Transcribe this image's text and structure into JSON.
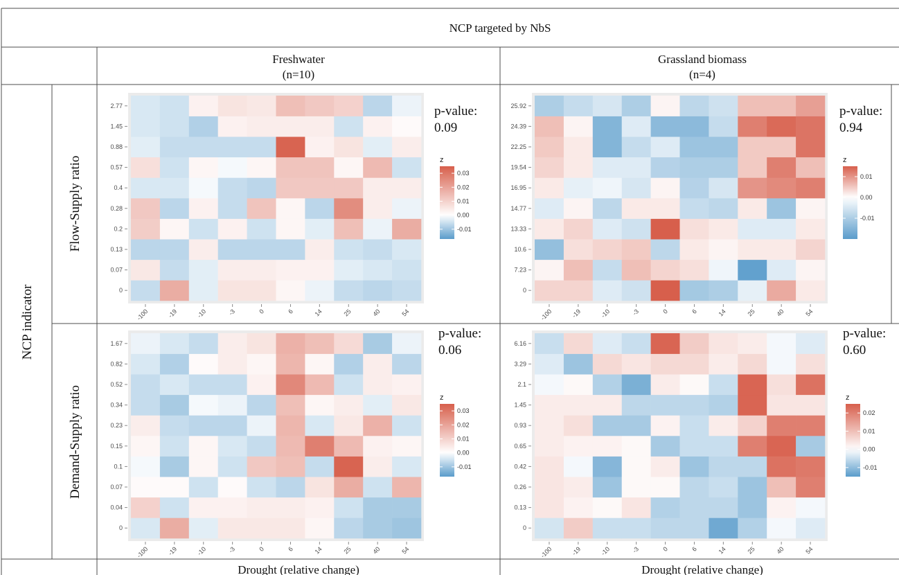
{
  "table": {
    "header_title": "NCP targeted by NbS",
    "row_group_label": "NCP indicator",
    "row_labels": [
      "Flow-Supply ratio",
      "Demand-Supply ratio"
    ],
    "column_titles": [
      {
        "name": "Freshwater",
        "n": "(n=10)"
      },
      {
        "name": "Grassland biomass",
        "n": "(n=4)"
      }
    ],
    "footer_labels": [
      "Drought (relative change)",
      "Drought (relative change)"
    ]
  },
  "colors": {
    "low": "#5a9ccb",
    "mid": "#ffffff",
    "high": "#d75f4c",
    "panel_bg": "#ebebeb"
  },
  "chart_data": [
    {
      "type": "heatmap",
      "ncp": "Freshwater",
      "indicator": "Flow-Supply ratio",
      "p_value_label": "p-value:",
      "p_value": "0.09",
      "legend_title": "z",
      "legend_ticks": [
        "0.03",
        "0.02",
        "0.01",
        "0.00",
        "-0.01"
      ],
      "zlim": [
        -0.017,
        0.035
      ],
      "x_categories": [
        "-100",
        "-19",
        "-10",
        "-3",
        "0",
        "6",
        "14",
        "25",
        "40",
        "54"
      ],
      "y_categories": [
        "0",
        "0.07",
        "0.13",
        "0.2",
        "0.28",
        "0.4",
        "0.57",
        "0.88",
        "1.45",
        "2.77"
      ],
      "z": [
        [
          -0.006,
          0.018,
          -0.003,
          0.006,
          0.006,
          0.002,
          -0.002,
          -0.006,
          -0.007,
          -0.006
        ],
        [
          0.005,
          -0.006,
          -0.003,
          0.004,
          0.004,
          0.003,
          0.003,
          -0.003,
          -0.004,
          -0.005
        ],
        [
          -0.007,
          -0.007,
          0.004,
          -0.007,
          -0.007,
          -0.007,
          0.004,
          -0.005,
          -0.006,
          -0.004
        ],
        [
          0.011,
          0.002,
          -0.005,
          0.003,
          -0.005,
          0.002,
          -0.003,
          0.014,
          -0.002,
          0.018
        ],
        [
          0.012,
          -0.007,
          0.003,
          -0.006,
          0.013,
          0.002,
          -0.007,
          0.025,
          0.004,
          -0.002
        ],
        [
          -0.004,
          -0.004,
          -0.001,
          -0.006,
          -0.007,
          0.012,
          0.012,
          0.012,
          0.004,
          0.004
        ],
        [
          0.007,
          -0.005,
          0.002,
          -0.001,
          0.002,
          0.013,
          0.013,
          0.002,
          0.015,
          -0.005
        ],
        [
          -0.003,
          -0.006,
          -0.006,
          -0.006,
          -0.006,
          0.034,
          0.003,
          0.006,
          -0.003,
          0.004
        ],
        [
          -0.004,
          -0.005,
          -0.008,
          0.003,
          0.004,
          0.004,
          0.004,
          -0.005,
          0.003,
          0.001
        ],
        [
          -0.004,
          -0.005,
          0.003,
          0.006,
          0.005,
          0.014,
          0.012,
          0.01,
          -0.007,
          -0.002
        ]
      ]
    },
    {
      "type": "heatmap",
      "ncp": "Grassland biomass",
      "indicator": "Flow-Supply ratio",
      "p_value_label": "p-value:",
      "p_value": "0.94",
      "legend_title": "z",
      "legend_ticks": [
        "0.01",
        "0.00",
        "-0.01"
      ],
      "zlim": [
        -0.02,
        0.015
      ],
      "x_categories": [
        "-100",
        "-19",
        "-10",
        "-3",
        "0",
        "6",
        "14",
        "25",
        "40",
        "54"
      ],
      "y_categories": [
        "0",
        "7.23",
        "10.6",
        "13.33",
        "14.77",
        "16.95",
        "19.54",
        "22.25",
        "24.39",
        "25.92"
      ],
      "z": [
        [
          0.004,
          0.004,
          -0.004,
          -0.006,
          0.015,
          -0.011,
          -0.01,
          -0.003,
          0.008,
          0.002
        ],
        [
          0.001,
          0.006,
          -0.007,
          0.006,
          0.004,
          0.003,
          -0.002,
          -0.019,
          -0.004,
          0.001
        ],
        [
          -0.013,
          0.003,
          0.004,
          0.005,
          -0.008,
          0.002,
          0.001,
          0.002,
          0.002,
          0.004
        ],
        [
          0.002,
          0.004,
          -0.004,
          -0.006,
          0.015,
          0.003,
          0.002,
          -0.004,
          -0.004,
          0.002
        ],
        [
          -0.004,
          0.001,
          -0.008,
          0.002,
          0.002,
          -0.007,
          -0.008,
          0.002,
          -0.012,
          0.001
        ],
        [
          0.002,
          -0.003,
          -0.002,
          -0.005,
          0.001,
          -0.009,
          -0.005,
          0.01,
          0.011,
          0.012
        ],
        [
          0.004,
          0.002,
          -0.004,
          -0.004,
          -0.009,
          -0.01,
          -0.01,
          0.005,
          0.012,
          0.006
        ],
        [
          0.005,
          0.002,
          -0.015,
          -0.007,
          -0.004,
          -0.012,
          -0.012,
          0.005,
          0.005,
          0.013
        ],
        [
          0.006,
          0.001,
          -0.015,
          -0.004,
          -0.014,
          -0.014,
          -0.007,
          0.012,
          0.014,
          0.013
        ],
        [
          -0.01,
          -0.007,
          -0.005,
          -0.01,
          0.001,
          -0.008,
          -0.006,
          0.006,
          0.006,
          0.009
        ]
      ]
    },
    {
      "type": "heatmap",
      "ncp": "Freshwater",
      "indicator": "Demand-Supply ratio",
      "p_value_label": "p-value:",
      "p_value": "0.06",
      "legend_title": "z",
      "legend_ticks": [
        "0.03",
        "0.02",
        "0.01",
        "0.00",
        "-0.01"
      ],
      "zlim": [
        -0.017,
        0.035
      ],
      "x_categories": [
        "-100",
        "-19",
        "-10",
        "-3",
        "0",
        "6",
        "14",
        "25",
        "40",
        "54"
      ],
      "y_categories": [
        "0",
        "0.04",
        "0.07",
        "0.1",
        "0.15",
        "0.23",
        "0.34",
        "0.52",
        "0.82",
        "1.67"
      ],
      "z": [
        [
          -0.004,
          0.018,
          -0.003,
          0.005,
          0.005,
          0.005,
          0.002,
          -0.007,
          -0.009,
          -0.01
        ],
        [
          0.01,
          -0.005,
          0.003,
          0.003,
          0.004,
          0.004,
          0.003,
          -0.005,
          -0.009,
          -0.009
        ],
        [
          0.001,
          0.001,
          -0.005,
          0.001,
          -0.005,
          -0.007,
          0.006,
          0.018,
          -0.005,
          0.016
        ],
        [
          -0.001,
          -0.009,
          0.002,
          -0.005,
          0.012,
          0.014,
          -0.006,
          0.034,
          0.004,
          -0.004
        ],
        [
          0.002,
          -0.005,
          0.002,
          -0.004,
          -0.006,
          0.015,
          0.028,
          0.015,
          0.003,
          0.002
        ],
        [
          0.004,
          -0.006,
          -0.007,
          -0.007,
          -0.002,
          0.016,
          -0.004,
          0.005,
          0.017,
          -0.005
        ],
        [
          -0.006,
          -0.009,
          -0.001,
          -0.002,
          -0.007,
          0.014,
          0.002,
          0.004,
          -0.003,
          0.005
        ],
        [
          -0.006,
          -0.004,
          -0.006,
          -0.006,
          0.003,
          0.026,
          0.015,
          -0.005,
          0.004,
          0.003
        ],
        [
          -0.004,
          -0.008,
          0.001,
          0.004,
          0.002,
          0.016,
          0.002,
          -0.008,
          0.004,
          -0.007
        ],
        [
          -0.002,
          -0.004,
          -0.006,
          0.004,
          0.006,
          0.017,
          0.014,
          0.008,
          -0.009,
          -0.002
        ]
      ]
    },
    {
      "type": "heatmap",
      "ncp": "Grassland biomass",
      "indicator": "Demand-Supply ratio",
      "p_value_label": "p-value:",
      "p_value": "0.60",
      "legend_title": "z",
      "legend_ticks": [
        "0.02",
        "0.01",
        "0.00",
        "-0.01"
      ],
      "zlim": [
        -0.015,
        0.025
      ],
      "x_categories": [
        "-100",
        "-19",
        "-10",
        "-3",
        "0",
        "6",
        "14",
        "25",
        "40",
        "54"
      ],
      "y_categories": [
        "0",
        "0.13",
        "0.26",
        "0.42",
        "0.65",
        "0.93",
        "1.45",
        "2.1",
        "3.29",
        "6.16"
      ],
      "z": [
        [
          -0.004,
          0.008,
          -0.005,
          -0.005,
          -0.006,
          -0.006,
          -0.013,
          -0.007,
          -0.001,
          -0.003
        ],
        [
          0.004,
          0.002,
          0.001,
          0.004,
          -0.007,
          -0.006,
          -0.006,
          -0.009,
          0.002,
          -0.001
        ],
        [
          0.004,
          0.003,
          -0.009,
          0.001,
          0.001,
          -0.006,
          -0.005,
          -0.009,
          0.01,
          0.02
        ],
        [
          0.004,
          -0.001,
          -0.011,
          0.001,
          0.003,
          -0.009,
          -0.006,
          -0.006,
          0.022,
          0.021
        ],
        [
          0.003,
          0.002,
          0.002,
          0.001,
          -0.008,
          -0.005,
          -0.005,
          0.02,
          0.024,
          -0.008
        ],
        [
          0.003,
          0.005,
          -0.008,
          -0.008,
          0.002,
          -0.005,
          0.003,
          0.007,
          0.02,
          0.02
        ],
        [
          0.003,
          0.003,
          0.003,
          -0.006,
          -0.006,
          -0.006,
          -0.007,
          0.024,
          0.004,
          0.004
        ],
        [
          -0.001,
          0.001,
          -0.007,
          -0.012,
          0.003,
          0.001,
          -0.005,
          0.024,
          0.005,
          0.022
        ],
        [
          -0.003,
          -0.009,
          0.006,
          0.004,
          0.006,
          0.006,
          0.003,
          0.006,
          -0.001,
          0.005
        ],
        [
          -0.005,
          0.006,
          -0.003,
          -0.005,
          0.024,
          0.008,
          0.004,
          0.003,
          -0.001,
          -0.003
        ]
      ]
    }
  ]
}
